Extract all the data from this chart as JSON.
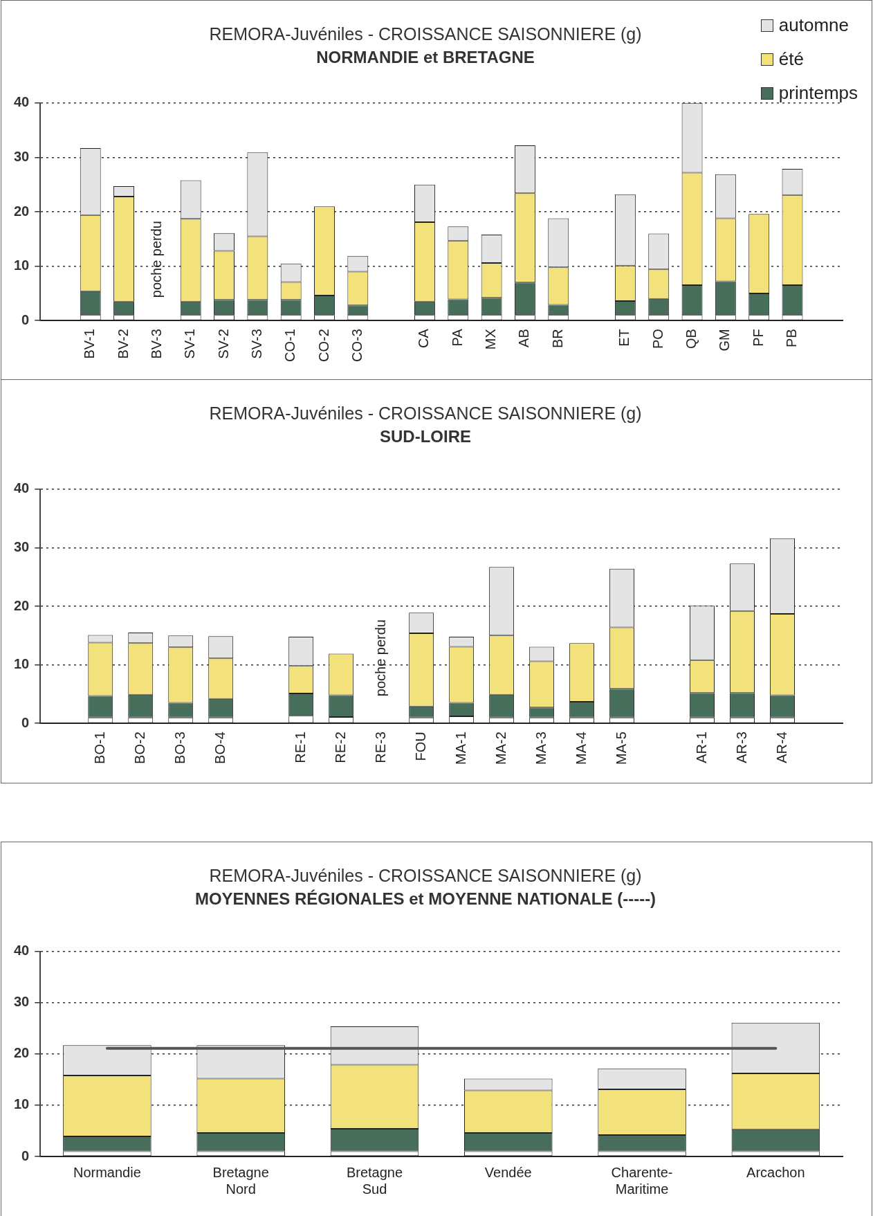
{
  "chart_data": [
    {
      "type": "bar",
      "stacked": true,
      "title": "REMORA-Juvéniles - CROISSANCE SAISONNIERE (g)",
      "subtitle": "NORMANDIE et BRETAGNE",
      "categories": [
        null,
        "BV-1",
        "BV-2",
        "BV-3",
        "SV-1",
        "SV-2",
        "SV-3",
        "CO-1",
        "CO-2",
        "CO-3",
        null,
        "CA",
        "PA",
        "MX",
        "AB",
        "BR",
        null,
        "ET",
        "PO",
        "QB",
        "GM",
        "PF",
        "PB",
        null
      ],
      "series": [
        {
          "color": "#ffffff",
          "values": [
            null,
            1,
            1,
            null,
            1,
            1,
            1,
            1,
            1,
            1,
            null,
            1,
            1,
            1,
            1,
            1,
            null,
            1,
            1,
            1,
            1,
            1,
            1,
            null
          ]
        },
        {
          "name": "printemps",
          "color": "#466e5a",
          "values": [
            null,
            4.4,
            2.5,
            null,
            2.5,
            2.8,
            2.8,
            2.8,
            3.6,
            1.8,
            null,
            2.5,
            2.9,
            3.2,
            6.0,
            1.9,
            null,
            2.6,
            3.0,
            5.5,
            6.2,
            4.0,
            5.5,
            null
          ]
        },
        {
          "name": "été",
          "color": "#f3e27c",
          "values": [
            null,
            14.0,
            19.3,
            null,
            15.2,
            9.0,
            11.7,
            3.3,
            16.4,
            6.2,
            null,
            14.6,
            10.8,
            6.4,
            16.4,
            6.9,
            null,
            6.5,
            5.4,
            20.7,
            11.6,
            14.6,
            16.6,
            null
          ]
        },
        {
          "name": "automne",
          "color": "#e4e4e4",
          "values": [
            null,
            12.3,
            1.9,
            null,
            7.1,
            3.3,
            15.4,
            3.4,
            0,
            2.9,
            null,
            6.9,
            2.6,
            5.2,
            8.8,
            9.0,
            null,
            13.1,
            6.6,
            12.8,
            8.1,
            0,
            4.8,
            null
          ]
        }
      ],
      "ylim": [
        0,
        40
      ],
      "yticks": [
        0,
        10,
        20,
        30,
        40
      ],
      "grid": "y",
      "legend": "top right",
      "annotations": [
        "poche perdu"
      ]
    },
    {
      "type": "bar",
      "stacked": true,
      "title": "REMORA-Juvéniles - CROISSANCE SAISONNIERE (g)",
      "subtitle": "SUD-LOIRE",
      "categories": [
        null,
        "BO-1",
        "BO-2",
        "BO-3",
        "BO-4",
        null,
        "RE-1",
        "RE-2",
        "RE-3",
        "FOU",
        "MA-1",
        "MA-2",
        "MA-3",
        "MA-4",
        "MA-5",
        null,
        "AR-1",
        "AR-3",
        "AR-4",
        null
      ],
      "series": [
        {
          "color": "#ffffff",
          "values": [
            null,
            1,
            1,
            1,
            1,
            null,
            1.3,
            1.1,
            null,
            1,
            1.2,
            1,
            1,
            1,
            1,
            null,
            1,
            1,
            1,
            null
          ]
        },
        {
          "color": "#466e5a",
          "values": [
            null,
            3.7,
            3.9,
            2.5,
            3.2,
            null,
            3.8,
            3.7,
            null,
            1.9,
            2.3,
            3.9,
            1.7,
            2.7,
            4.9,
            null,
            4.2,
            4.2,
            3.8,
            null
          ]
        },
        {
          "color": "#f3e27c",
          "values": [
            null,
            9.1,
            8.8,
            9.5,
            6.9,
            null,
            4.7,
            7.1,
            null,
            12.5,
            9.6,
            10.1,
            7.9,
            10.0,
            10.5,
            null,
            5.6,
            14.0,
            13.9,
            null
          ]
        },
        {
          "color": "#e4e4e4",
          "values": [
            null,
            1.3,
            1.8,
            2.0,
            3.8,
            null,
            5.0,
            0,
            null,
            3.5,
            1.7,
            11.7,
            2.5,
            0,
            10.0,
            null,
            9.3,
            8.1,
            12.9,
            null
          ]
        }
      ],
      "ylim": [
        0,
        40
      ],
      "yticks": [
        0,
        10,
        20,
        30,
        40
      ],
      "grid": "y",
      "annotations": [
        "poche perdu"
      ]
    },
    {
      "type": "bar",
      "stacked": true,
      "title": "REMORA-Juvéniles - CROISSANCE SAISONNIERE (g)",
      "subtitle": "MOYENNES RÉGIONALES et MOYENNE NATIONALE (-----)",
      "categories": [
        "Normandie",
        "Bretagne Nord",
        "Bretagne Sud",
        "Vendée",
        "Charente-Maritime",
        "Arcachon"
      ],
      "series": [
        {
          "color": "#ffffff",
          "values": [
            1,
            1,
            1,
            1,
            1,
            1
          ]
        },
        {
          "color": "#466e5a",
          "values": [
            2.9,
            3.6,
            4.4,
            3.6,
            3.2,
            4.3
          ]
        },
        {
          "color": "#f3e27c",
          "values": [
            11.9,
            10.6,
            12.5,
            8.3,
            8.9,
            10.9
          ]
        },
        {
          "color": "#e4e4e4",
          "values": [
            5.9,
            6.5,
            7.5,
            2.3,
            4.1,
            9.9
          ]
        }
      ],
      "ylim": [
        0,
        40
      ],
      "yticks": [
        0,
        10,
        20,
        30,
        40
      ],
      "grid": "y",
      "ref_lines": [
        {
          "axis": "y",
          "value": 21.1,
          "color": "#555555"
        }
      ]
    }
  ]
}
